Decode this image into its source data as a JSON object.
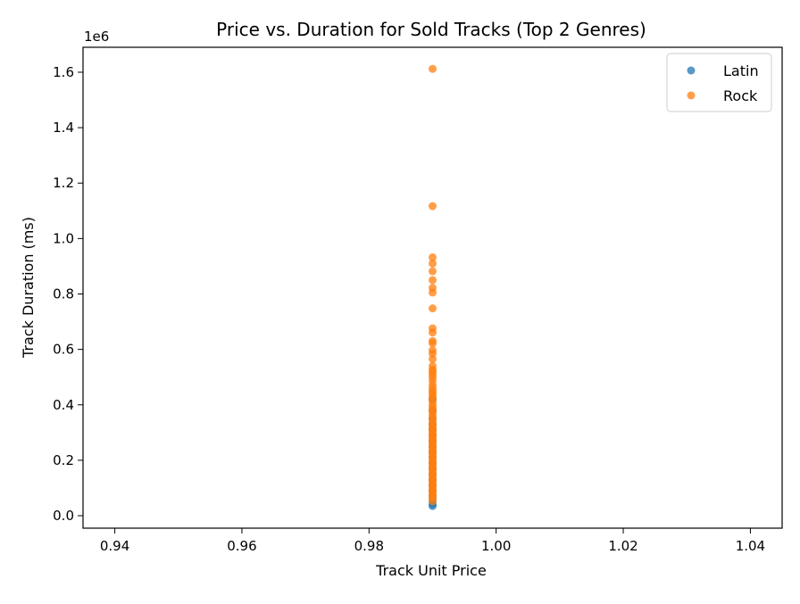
{
  "chart_data": {
    "type": "scatter",
    "title": "Price vs. Duration for Sold Tracks (Top 2 Genres)",
    "xlabel": "Track Unit Price",
    "ylabel": "Track Duration (ms)",
    "y_offset_label": "1e6",
    "xlim": [
      0.935,
      1.045
    ],
    "ylim": [
      -45000,
      1690000
    ],
    "x_ticks": [
      0.94,
      0.96,
      0.98,
      1.0,
      1.02,
      1.04
    ],
    "x_tick_labels": [
      "0.94",
      "0.96",
      "0.98",
      "1.00",
      "1.02",
      "1.04"
    ],
    "y_ticks": [
      0,
      200000,
      400000,
      600000,
      800000,
      1000000,
      1200000,
      1400000,
      1600000
    ],
    "y_tick_labels": [
      "0.0",
      "0.2",
      "0.4",
      "0.6",
      "0.8",
      "1.0",
      "1.2",
      "1.4",
      "1.6"
    ],
    "grid": false,
    "legend": {
      "location": "upper right"
    },
    "series": [
      {
        "name": "Latin",
        "color": "#1f77b4",
        "x": [
          0.99,
          0.99,
          0.99,
          0.99,
          0.99,
          0.99,
          0.99,
          0.99,
          0.99,
          0.99,
          0.99,
          0.99,
          0.99,
          0.99,
          0.99,
          0.99,
          0.99,
          0.99,
          0.99,
          0.99
        ],
        "y": [
          35000,
          42000,
          55000,
          70000,
          90000,
          110000,
          130000,
          150000,
          170000,
          190000,
          210000,
          230000,
          250000,
          270000,
          290000,
          310000,
          330000,
          350000,
          380000,
          420000
        ]
      },
      {
        "name": "Rock",
        "color": "#ff7f0e",
        "x": [
          0.99,
          0.99,
          0.99,
          0.99,
          0.99,
          0.99,
          0.99,
          0.99,
          0.99,
          0.99,
          0.99,
          0.99,
          0.99,
          0.99,
          0.99,
          0.99,
          0.99,
          0.99,
          0.99,
          0.99,
          0.99,
          0.99,
          0.99,
          0.99,
          0.99,
          0.99,
          0.99,
          0.99,
          0.99,
          0.99,
          0.99,
          0.99,
          0.99,
          0.99,
          0.99,
          0.99,
          0.99,
          0.99,
          0.99,
          0.99,
          0.99,
          0.99,
          0.99,
          0.99,
          0.99,
          0.99,
          0.99,
          0.99,
          0.99,
          0.99,
          0.99,
          0.99,
          0.99,
          0.99,
          0.99,
          0.99,
          0.99,
          0.99,
          0.99,
          0.99,
          0.99,
          0.99,
          0.99,
          0.99,
          0.99,
          0.99,
          0.99,
          0.99,
          0.99,
          0.99,
          0.99
        ],
        "y": [
          1612000,
          1117000,
          932000,
          910000,
          882000,
          850000,
          822000,
          805000,
          748000,
          676000,
          661000,
          630000,
          622000,
          597000,
          585000,
          565000,
          540000,
          527000,
          520000,
          510000,
          500000,
          487000,
          472000,
          460000,
          450000,
          442000,
          432000,
          425000,
          412000,
          400000,
          390000,
          380000,
          370000,
          360000,
          350000,
          340000,
          330000,
          320000,
          312000,
          304000,
          296000,
          288000,
          280000,
          272000,
          264000,
          256000,
          248000,
          240000,
          232000,
          224000,
          216000,
          208000,
          200000,
          192000,
          184000,
          176000,
          168000,
          160000,
          152000,
          144000,
          136000,
          128000,
          120000,
          112000,
          104000,
          96000,
          88000,
          80000,
          72000,
          64000,
          52000
        ]
      }
    ]
  }
}
